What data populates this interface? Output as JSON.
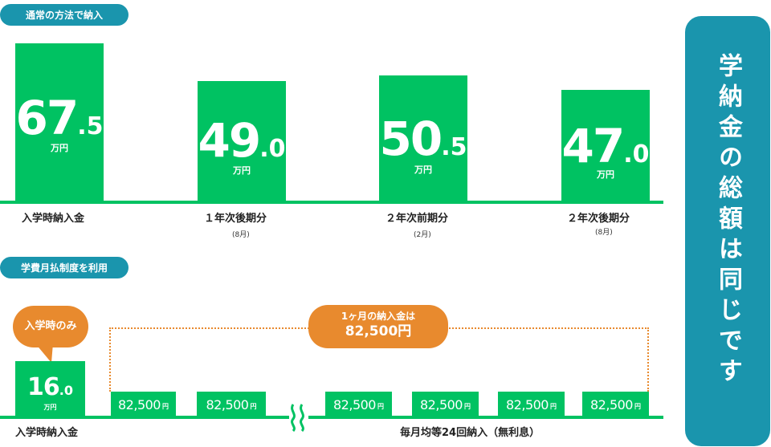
{
  "section1": {
    "label": "通常の方法で納入",
    "bars": [
      {
        "int": "67",
        "dec": ".5",
        "unit": "万円",
        "label": "入学時納入金",
        "sub": ""
      },
      {
        "int": "49",
        "dec": ".0",
        "unit": "万円",
        "label": "１年次後期分",
        "sub": "(8月)"
      },
      {
        "int": "50",
        "dec": ".5",
        "unit": "万円",
        "label": "２年次前期分",
        "sub": "(2月)"
      },
      {
        "int": "47",
        "dec": ".0",
        "unit": "万円",
        "label": "２年次後期分",
        "sub": "(8月)"
      }
    ]
  },
  "section2": {
    "label": "学費月払制度を利用",
    "bubble": "入学時のみ",
    "entrance": {
      "int": "16",
      "dec": ".0",
      "unit": "万円",
      "label": "入学時納入金"
    },
    "callout_line1": "1ヶ月の納入金は",
    "callout_line2": "82,500円",
    "months": [
      {
        "value": "82,500",
        "unit": "円"
      },
      {
        "value": "82,500",
        "unit": "円"
      },
      {
        "value": "82,500",
        "unit": "円"
      },
      {
        "value": "82,500",
        "unit": "円"
      },
      {
        "value": "82,500",
        "unit": "円"
      },
      {
        "value": "82,500",
        "unit": "円"
      }
    ],
    "monthly_label": "毎月均等24回納入（無利息）"
  },
  "side_banner": "学納金の総額は同じです",
  "colors": {
    "green": "#00c262",
    "teal": "#1a95ad",
    "orange": "#e88a2e"
  }
}
